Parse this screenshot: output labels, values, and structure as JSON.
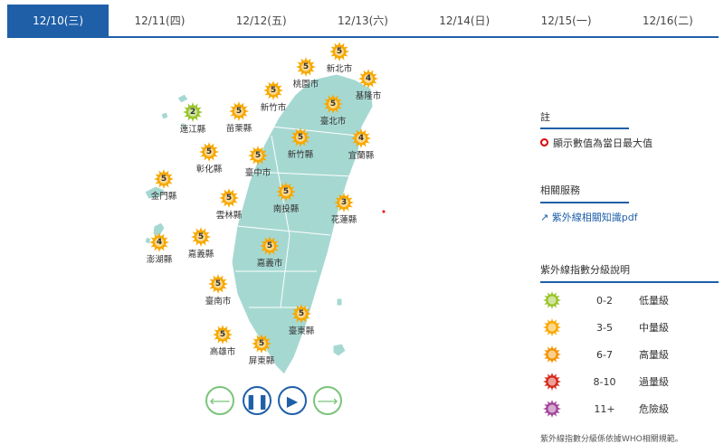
{
  "tabs": [
    {
      "label": "12/10(三)",
      "active": true
    },
    {
      "label": "12/11(四)"
    },
    {
      "label": "12/12(五)"
    },
    {
      "label": "12/13(六)"
    },
    {
      "label": "12/14(日)"
    },
    {
      "label": "12/15(一)"
    },
    {
      "label": "12/16(二)"
    }
  ],
  "stations": [
    {
      "name": "新北市",
      "value": "5"
    },
    {
      "name": "桃園市",
      "value": "5"
    },
    {
      "name": "基隆市",
      "value": "4"
    },
    {
      "name": "新竹市",
      "value": "5"
    },
    {
      "name": "連江縣",
      "value": "2"
    },
    {
      "name": "苗栗縣",
      "value": "5"
    },
    {
      "name": "臺北市",
      "value": "5"
    },
    {
      "name": "新竹縣",
      "value": "5"
    },
    {
      "name": "宜蘭縣",
      "value": "4"
    },
    {
      "name": "彰化縣",
      "value": "5"
    },
    {
      "name": "臺中市",
      "value": "5"
    },
    {
      "name": "金門縣",
      "value": "5"
    },
    {
      "name": "雲林縣",
      "value": "5"
    },
    {
      "name": "南投縣",
      "value": "5"
    },
    {
      "name": "花蓮縣",
      "value": "3"
    },
    {
      "name": "澎湖縣",
      "value": "4"
    },
    {
      "name": "嘉義縣",
      "value": "5"
    },
    {
      "name": "嘉義市",
      "value": "5"
    },
    {
      "name": "臺南市",
      "value": "5"
    },
    {
      "name": "臺東縣",
      "value": "5"
    },
    {
      "name": "高雄市",
      "value": "5"
    },
    {
      "name": "屏東縣",
      "value": "5"
    }
  ],
  "controls": {
    "prev": "arrow-left-icon",
    "pause": "pause-icon",
    "play": "play-icon",
    "next": "arrow-right-icon"
  },
  "note": {
    "title": "註",
    "text": "顯示數值為當日最大值"
  },
  "services": {
    "title": "相關服務",
    "link": "紫外線相關知識pdf"
  },
  "legend": {
    "title": "紫外線指數分級說明",
    "items": [
      {
        "range": "0-2",
        "level": "低量級",
        "color": "#9ac42a"
      },
      {
        "range": "3-5",
        "level": "中量級",
        "color": "#f7a800"
      },
      {
        "range": "6-7",
        "level": "高量級",
        "color": "#f39200"
      },
      {
        "range": "8-10",
        "level": "過量級",
        "color": "#d42a1c"
      },
      {
        "range": "11+",
        "level": "危險級",
        "color": "#a2449a"
      }
    ],
    "footnote": "紫外線指數分級係依據WHO相關規範。"
  },
  "colors": {
    "accent": "#1f5fa8",
    "land": "#a6d8d2",
    "control_green": "#7ac47a"
  }
}
